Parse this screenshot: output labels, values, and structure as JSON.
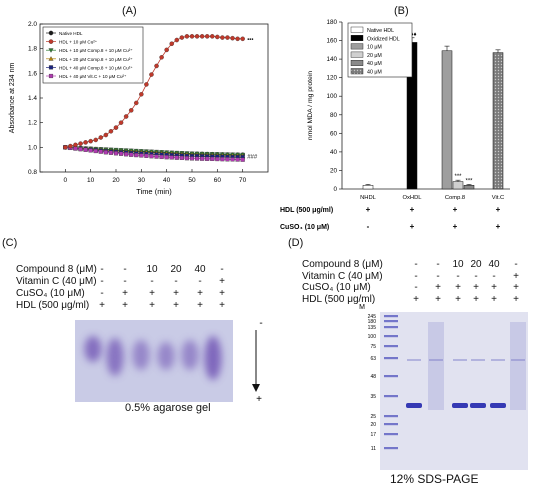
{
  "panels": {
    "A": {
      "label": "(A)"
    },
    "B": {
      "label": "(B)"
    },
    "C": {
      "label": "(C)"
    },
    "D": {
      "label": "(D)"
    }
  },
  "chart_data": [
    {
      "type": "line",
      "xlabel": "Time (min)",
      "ylabel": "Absorbance at 234 nm",
      "xlim": [
        -10,
        80
      ],
      "ylim": [
        0.8,
        2.0
      ],
      "xticks": [
        0,
        10,
        20,
        30,
        40,
        50,
        60,
        70
      ],
      "yticks": [
        0.8,
        1.0,
        1.2,
        1.4,
        1.6,
        1.8,
        2.0
      ],
      "grid": false,
      "legend_placement": "top-left",
      "series": [
        {
          "name": "Native HDL",
          "color": "#1a1a1a",
          "marker": "circle",
          "x": [
            0,
            2,
            4,
            6,
            8,
            10,
            12,
            14,
            16,
            18,
            20,
            22,
            24,
            26,
            28,
            30,
            32,
            34,
            36,
            38,
            40,
            42,
            44,
            46,
            48,
            50,
            52,
            54,
            56,
            58,
            60,
            62,
            64,
            66,
            68,
            70
          ],
          "y": [
            1.0,
            0.998,
            0.995,
            0.993,
            0.99,
            0.988,
            0.985,
            0.983,
            0.98,
            0.978,
            0.976,
            0.974,
            0.972,
            0.97,
            0.968,
            0.966,
            0.964,
            0.962,
            0.96,
            0.958,
            0.956,
            0.954,
            0.952,
            0.95,
            0.949,
            0.948,
            0.947,
            0.946,
            0.945,
            0.944,
            0.943,
            0.942,
            0.941,
            0.94,
            0.94,
            0.94
          ]
        },
        {
          "name": "HDL + 10 μM Cu²⁺",
          "color": "#c0392b",
          "marker": "circle",
          "x": [
            0,
            2,
            4,
            6,
            8,
            10,
            12,
            14,
            16,
            18,
            20,
            22,
            24,
            26,
            28,
            30,
            32,
            34,
            36,
            38,
            40,
            42,
            44,
            46,
            48,
            50,
            52,
            54,
            56,
            58,
            60,
            62,
            64,
            66,
            68,
            70
          ],
          "y": [
            1.0,
            1.01,
            1.02,
            1.03,
            1.04,
            1.05,
            1.06,
            1.08,
            1.1,
            1.13,
            1.16,
            1.2,
            1.25,
            1.3,
            1.36,
            1.43,
            1.51,
            1.59,
            1.66,
            1.73,
            1.79,
            1.84,
            1.87,
            1.89,
            1.9,
            1.9,
            1.9,
            1.9,
            1.9,
            1.9,
            1.895,
            1.89,
            1.89,
            1.885,
            1.88,
            1.88
          ]
        },
        {
          "name": "HDL + 10 μM Comp.8 + 10 μM Cu²⁺",
          "color": "#2e7d32",
          "marker": "triangle-down",
          "x": [
            0,
            2,
            4,
            6,
            8,
            10,
            12,
            14,
            16,
            18,
            20,
            22,
            24,
            26,
            28,
            30,
            32,
            34,
            36,
            38,
            40,
            42,
            44,
            46,
            48,
            50,
            52,
            54,
            56,
            58,
            60,
            62,
            64,
            66,
            68,
            70
          ],
          "y": [
            1.0,
            0.998,
            0.996,
            0.994,
            0.992,
            0.99,
            0.988,
            0.986,
            0.984,
            0.982,
            0.98,
            0.978,
            0.976,
            0.974,
            0.972,
            0.97,
            0.968,
            0.966,
            0.964,
            0.962,
            0.96,
            0.958,
            0.956,
            0.954,
            0.952,
            0.95,
            0.949,
            0.948,
            0.947,
            0.946,
            0.945,
            0.944,
            0.943,
            0.942,
            0.941,
            0.94
          ]
        },
        {
          "name": "HDL + 20 μM Comp.8 + 10 μM Cu²⁺",
          "color": "#b8860b",
          "marker": "triangle-up",
          "x": [
            0,
            2,
            4,
            6,
            8,
            10,
            12,
            14,
            16,
            18,
            20,
            22,
            24,
            26,
            28,
            30,
            32,
            34,
            36,
            38,
            40,
            42,
            44,
            46,
            48,
            50,
            52,
            54,
            56,
            58,
            60,
            62,
            64,
            66,
            68,
            70
          ],
          "y": [
            1.0,
            0.997,
            0.994,
            0.991,
            0.988,
            0.985,
            0.982,
            0.979,
            0.976,
            0.973,
            0.97,
            0.968,
            0.966,
            0.964,
            0.962,
            0.96,
            0.958,
            0.956,
            0.954,
            0.952,
            0.95,
            0.948,
            0.946,
            0.944,
            0.942,
            0.94,
            0.939,
            0.938,
            0.937,
            0.936,
            0.935,
            0.934,
            0.933,
            0.932,
            0.931,
            0.93
          ]
        },
        {
          "name": "HDL + 40 μM Comp.8 + 10 μM Cu²⁺",
          "color": "#1a237e",
          "marker": "square",
          "x": [
            0,
            2,
            4,
            6,
            8,
            10,
            12,
            14,
            16,
            18,
            20,
            22,
            24,
            26,
            28,
            30,
            32,
            34,
            36,
            38,
            40,
            42,
            44,
            46,
            48,
            50,
            52,
            54,
            56,
            58,
            60,
            62,
            64,
            66,
            68,
            70
          ],
          "y": [
            1.0,
            0.996,
            0.992,
            0.988,
            0.984,
            0.98,
            0.976,
            0.972,
            0.968,
            0.965,
            0.962,
            0.959,
            0.956,
            0.953,
            0.95,
            0.948,
            0.946,
            0.944,
            0.942,
            0.94,
            0.938,
            0.936,
            0.934,
            0.932,
            0.93,
            0.929,
            0.928,
            0.927,
            0.926,
            0.925,
            0.924,
            0.923,
            0.922,
            0.921,
            0.92,
            0.92
          ]
        },
        {
          "name": "HDL + 40 μM Vit.C + 10 μM Cu²⁺",
          "color": "#b03ab0",
          "marker": "square",
          "x": [
            0,
            2,
            4,
            6,
            8,
            10,
            12,
            14,
            16,
            18,
            20,
            22,
            24,
            26,
            28,
            30,
            32,
            34,
            36,
            38,
            40,
            42,
            44,
            46,
            48,
            50,
            52,
            54,
            56,
            58,
            60,
            62,
            64,
            66,
            68,
            70
          ],
          "y": [
            1.0,
            0.995,
            0.99,
            0.985,
            0.98,
            0.975,
            0.97,
            0.965,
            0.96,
            0.956,
            0.952,
            0.948,
            0.944,
            0.94,
            0.937,
            0.934,
            0.931,
            0.928,
            0.925,
            0.922,
            0.92,
            0.918,
            0.916,
            0.914,
            0.912,
            0.91,
            0.909,
            0.908,
            0.907,
            0.906,
            0.905,
            0.904,
            0.903,
            0.902,
            0.901,
            0.9
          ]
        }
      ],
      "annotations": [
        {
          "text": "•••",
          "x": 71,
          "y": 1.88,
          "color": "#1a1a1a"
        },
        {
          "text": "###",
          "x": 71,
          "y": 0.93,
          "color": "#1a1a1a"
        }
      ]
    },
    {
      "type": "bar",
      "ylabel": "nmol MDA / mg protein",
      "ylim": [
        0,
        180
      ],
      "yticks": [
        0,
        20,
        40,
        60,
        80,
        100,
        120,
        140,
        160,
        180
      ],
      "categories": [
        "NHDL",
        "OxHDL",
        "Comp.8",
        "Vit.C"
      ],
      "legend_placement": "top-left",
      "legend": [
        "Native HDL",
        "Oxidized HDL",
        "10 μM",
        "20 μM",
        "40 μM",
        "40 μM"
      ],
      "bars": [
        {
          "category": "NHDL",
          "value": 4,
          "error": 1,
          "fill": "#ffffff",
          "annotation": ""
        },
        {
          "category": "OxHDL",
          "value": 158,
          "error": 5,
          "fill": "#000000",
          "annotation": "♦♦♦"
        },
        {
          "category": "Comp.8",
          "value": 149,
          "error": 5,
          "fill": "#9e9e9e",
          "annotation": ""
        },
        {
          "category": "Comp.8",
          "value": 8,
          "error": 1.5,
          "fill": "#d0d0d0",
          "annotation": "***"
        },
        {
          "category": "Comp.8",
          "value": 4,
          "error": 1,
          "fill": "#8a8a8a",
          "annotation": "***"
        },
        {
          "category": "Vit.C",
          "value": 147,
          "error": 3,
          "fill": "#8c8c8c",
          "annotation": ""
        }
      ],
      "conditions": [
        {
          "label": "HDL (500 μg/ml)",
          "values": [
            "+",
            "+",
            "+",
            "+"
          ]
        },
        {
          "label": "CuSO₄ (10 μM)",
          "values": [
            "-",
            "+",
            "+",
            "+"
          ]
        }
      ]
    }
  ],
  "gel_c": {
    "conditions": [
      {
        "label": "Compound 8 (μM)",
        "values": [
          "-",
          "-",
          "10",
          "20",
          "40",
          "-"
        ]
      },
      {
        "label": "Vitamin C (40 μM)",
        "values": [
          "-",
          "-",
          "-",
          "-",
          "-",
          "+"
        ]
      },
      {
        "label": "CuSO₄ (10 μM)",
        "values": [
          "-",
          "+",
          "+",
          "+",
          "+",
          "+"
        ]
      },
      {
        "label": "HDL (500 μg/ml)",
        "values": [
          "+",
          "+",
          "+",
          "+",
          "+",
          "+"
        ]
      }
    ],
    "polarity_top": "-",
    "polarity_bottom": "+",
    "caption": "0.5% agarose gel",
    "colors": {
      "gel_bg": "#c9cbe6",
      "band": "#6d4fb2"
    }
  },
  "gel_d": {
    "conditions": [
      {
        "label": "Compound 8 (μM)",
        "values": [
          "-",
          "-",
          "10",
          "20",
          "40",
          "-"
        ]
      },
      {
        "label": "Vitamin C (40 μM)",
        "values": [
          "-",
          "-",
          "-",
          "-",
          "-",
          "+"
        ]
      },
      {
        "label": "CuSO₄ (10 μM)",
        "values": [
          "-",
          "+",
          "+",
          "+",
          "+",
          "+"
        ]
      },
      {
        "label": "HDL (500 μg/ml)",
        "values": [
          "+",
          "+",
          "+",
          "+",
          "+",
          "+"
        ]
      }
    ],
    "marker_label": "M",
    "marker_sizes": [
      "245",
      "180",
      "135",
      "100",
      "75",
      "63",
      "48",
      "35",
      "25",
      "20",
      "17",
      "11"
    ],
    "caption": "12% SDS-PAGE",
    "colors": {
      "gel_bg": "#e1e2f0",
      "band": "#2b2fb0"
    }
  }
}
